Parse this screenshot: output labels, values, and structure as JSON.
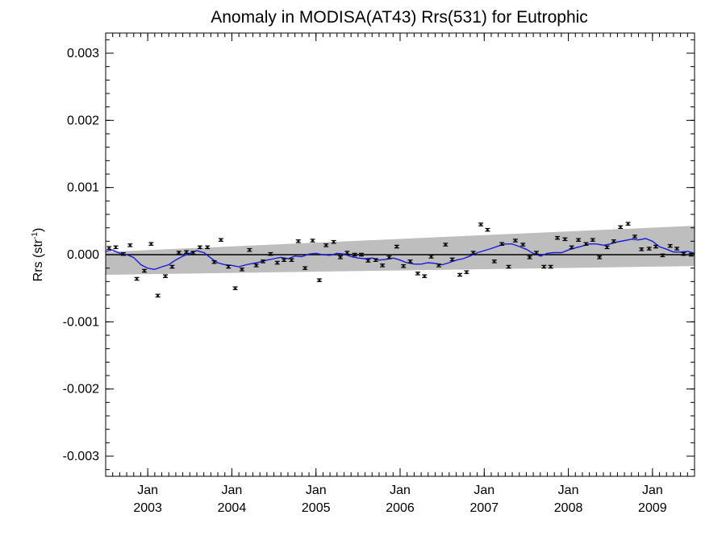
{
  "chart_data": {
    "type": "scatter",
    "title": "Anomaly in MODISA(AT43) Rrs(531) for Eutrophic",
    "ylabel_main": "Rrs (str",
    "ylabel_sup": "-1",
    "ylabel_tail": ")",
    "xlabel": "",
    "xlim": [
      2002.5,
      2009.5
    ],
    "ylim": [
      -0.0033,
      0.0033
    ],
    "grid": false,
    "x_ticks": [
      {
        "x": 2003.0,
        "month": "Jan",
        "year": "2003"
      },
      {
        "x": 2004.0,
        "month": "Jan",
        "year": "2004"
      },
      {
        "x": 2005.0,
        "month": "Jan",
        "year": "2005"
      },
      {
        "x": 2006.0,
        "month": "Jan",
        "year": "2006"
      },
      {
        "x": 2007.0,
        "month": "Jan",
        "year": "2007"
      },
      {
        "x": 2008.0,
        "month": "Jan",
        "year": "2008"
      },
      {
        "x": 2009.0,
        "month": "Jan",
        "year": "2009"
      }
    ],
    "y_ticks": [
      {
        "value": 0.003,
        "label": "0.003"
      },
      {
        "value": 0.002,
        "label": "0.002"
      },
      {
        "value": 0.001,
        "label": "0.001"
      },
      {
        "value": 0.0,
        "label": "0.000"
      },
      {
        "value": -0.001,
        "label": "-0.001"
      },
      {
        "value": -0.002,
        "label": "-0.002"
      },
      {
        "value": -0.003,
        "label": "-0.003"
      }
    ],
    "y_minor_step": 0.0002,
    "x_minor_step_months": 1,
    "zero_line": 0.0,
    "confidence_band": {
      "color": "#bebebe",
      "x_start": 2002.5,
      "x_end": 2009.5,
      "lower_start": -0.0003,
      "lower_end": -0.00017,
      "upper_start": 4e-05,
      "upper_end": 0.00043
    },
    "error_bar_halfwidth": 2e-05,
    "series": [
      {
        "kind": "points",
        "color": "#000000",
        "x": [
          2002.54,
          2002.62,
          2002.71,
          2002.79,
          2002.87,
          2002.96,
          2003.04,
          2003.12,
          2003.21,
          2003.29,
          2003.37,
          2003.46,
          2003.54,
          2003.62,
          2003.71,
          2003.79,
          2003.87,
          2003.96,
          2004.04,
          2004.12,
          2004.21,
          2004.29,
          2004.37,
          2004.46,
          2004.54,
          2004.62,
          2004.71,
          2004.79,
          2004.87,
          2004.96,
          2005.04,
          2005.12,
          2005.21,
          2005.29,
          2005.37,
          2005.46,
          2005.54,
          2005.62,
          2005.71,
          2005.79,
          2005.87,
          2005.96,
          2006.04,
          2006.12,
          2006.21,
          2006.29,
          2006.37,
          2006.46,
          2006.54,
          2006.62,
          2006.71,
          2006.79,
          2006.87,
          2006.96,
          2007.04,
          2007.12,
          2007.21,
          2007.29,
          2007.37,
          2007.46,
          2007.54,
          2007.62,
          2007.71,
          2007.79,
          2007.87,
          2007.96,
          2008.04,
          2008.12,
          2008.21,
          2008.29,
          2008.37,
          2008.46,
          2008.54,
          2008.62,
          2008.71,
          2008.79,
          2008.87,
          2008.96,
          2009.04,
          2009.12,
          2009.21,
          2009.29,
          2009.37,
          2009.46
        ],
        "y": [
          0.0001,
          0.00011,
          1e-05,
          0.00014,
          -0.00036,
          -0.00024,
          0.00016,
          -0.00061,
          -0.00032,
          -0.00018,
          3e-05,
          4e-05,
          3e-05,
          0.00011,
          0.00011,
          -0.00011,
          0.00022,
          -0.00018,
          -0.0005,
          -0.00022,
          7e-05,
          -0.00016,
          -0.0001,
          1e-05,
          -0.00012,
          -8e-05,
          -8e-05,
          0.0002,
          -0.0002,
          0.00021,
          -0.00038,
          0.00014,
          0.00019,
          -4e-05,
          3e-05,
          0.0,
          0.0,
          -9e-05,
          -8e-05,
          -0.00016,
          -4e-05,
          0.00012,
          -0.00017,
          -0.0001,
          -0.00028,
          -0.00032,
          -3e-05,
          -0.00016,
          0.00015,
          -7e-05,
          -0.0003,
          -0.00026,
          3e-05,
          0.00045,
          0.00037,
          -0.0001,
          0.00016,
          -0.00018,
          0.00021,
          0.00015,
          -4e-05,
          3e-05,
          -0.00018,
          -0.00018,
          0.00025,
          0.00023,
          0.00011,
          0.00022,
          0.00016,
          0.00022,
          -4e-05,
          0.00011,
          0.0002,
          0.00041,
          0.00046,
          0.00027,
          8e-05,
          9e-05,
          0.00012,
          -1e-05,
          0.00013,
          9e-05,
          1e-05,
          0.0
        ]
      },
      {
        "kind": "line",
        "color": "#1a1adc",
        "x": [
          2002.5,
          2002.58,
          2002.67,
          2002.75,
          2002.83,
          2002.92,
          2003.0,
          2003.08,
          2003.17,
          2003.25,
          2003.33,
          2003.42,
          2003.5,
          2003.58,
          2003.67,
          2003.75,
          2003.83,
          2003.92,
          2004.0,
          2004.08,
          2004.17,
          2004.25,
          2004.33,
          2004.42,
          2004.5,
          2004.58,
          2004.67,
          2004.75,
          2004.83,
          2004.92,
          2005.0,
          2005.08,
          2005.17,
          2005.25,
          2005.33,
          2005.42,
          2005.5,
          2005.58,
          2005.67,
          2005.75,
          2005.83,
          2005.92,
          2006.0,
          2006.08,
          2006.17,
          2006.25,
          2006.33,
          2006.42,
          2006.5,
          2006.58,
          2006.67,
          2006.75,
          2006.83,
          2006.92,
          2007.0,
          2007.08,
          2007.17,
          2007.25,
          2007.33,
          2007.42,
          2007.5,
          2007.58,
          2007.67,
          2007.75,
          2007.83,
          2007.92,
          2008.0,
          2008.08,
          2008.17,
          2008.25,
          2008.33,
          2008.42,
          2008.5,
          2008.58,
          2008.67,
          2008.75,
          2008.83,
          2008.92,
          2009.0,
          2009.08,
          2009.17,
          2009.25,
          2009.33,
          2009.42,
          2009.5
        ],
        "y": [
          5e-05,
          7e-05,
          2e-05,
          0.0,
          -4e-05,
          -0.00015,
          -0.0002,
          -0.00022,
          -0.00018,
          -0.00015,
          -8e-05,
          -2e-05,
          2e-05,
          6e-05,
          3e-05,
          -5e-05,
          -0.00012,
          -0.00015,
          -0.00016,
          -0.00018,
          -0.00015,
          -0.00013,
          -0.00011,
          -8e-05,
          -6e-05,
          -4e-05,
          -6e-05,
          -2e-05,
          -3e-05,
          1e-05,
          2e-05,
          0.0,
          -1e-05,
          2e-05,
          1e-05,
          -3e-05,
          -5e-05,
          -6e-05,
          -5e-05,
          -8e-05,
          -7e-05,
          -5e-05,
          -8e-05,
          -0.00012,
          -0.00014,
          -0.00014,
          -0.00012,
          -0.00013,
          -0.00015,
          -0.00012,
          -8e-05,
          -6e-05,
          -2e-05,
          3e-05,
          6e-05,
          9e-05,
          0.00013,
          0.00016,
          0.00016,
          0.00012,
          8e-05,
          2e-05,
          -2e-05,
          2e-05,
          3e-05,
          3e-05,
          7e-05,
          0.0001,
          0.00013,
          0.00016,
          0.00016,
          0.00014,
          0.00016,
          0.00019,
          0.00021,
          0.00023,
          0.00022,
          0.00024,
          0.0002,
          0.00012,
          8e-05,
          4e-05,
          4e-05,
          5e-05,
          2e-05
        ]
      }
    ]
  }
}
